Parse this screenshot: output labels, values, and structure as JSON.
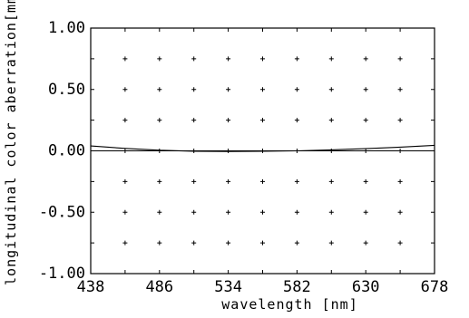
{
  "chart_data": {
    "type": "line",
    "title": "",
    "xlabel": "wavelength [nm]",
    "ylabel": "longitudinal color aberration[mm",
    "xlim": [
      438,
      678
    ],
    "ylim": [
      -1.0,
      1.0
    ],
    "x_ticks": [
      438,
      486,
      534,
      582,
      630,
      678
    ],
    "y_ticks": [
      1.0,
      0.5,
      0.0,
      -0.5,
      -1.0
    ],
    "x_tick_labels": [
      "438",
      "486",
      "534",
      "582",
      "630",
      "678"
    ],
    "y_tick_labels": [
      "1.00",
      "0.50",
      "0.00",
      "-0.50",
      "-1.00"
    ],
    "grid": "dotted crosses",
    "legend": "none",
    "series": [
      {
        "x": [
          438,
          462,
          486,
          510,
          534,
          558,
          582,
          606,
          630,
          654,
          678
        ],
        "y": [
          0.04,
          0.02,
          0.005,
          -0.003,
          -0.005,
          -0.004,
          0.0,
          0.008,
          0.018,
          0.03,
          0.045
        ]
      },
      {
        "x": [
          438,
          678
        ],
        "y": [
          0.0,
          0.0
        ]
      }
    ]
  }
}
